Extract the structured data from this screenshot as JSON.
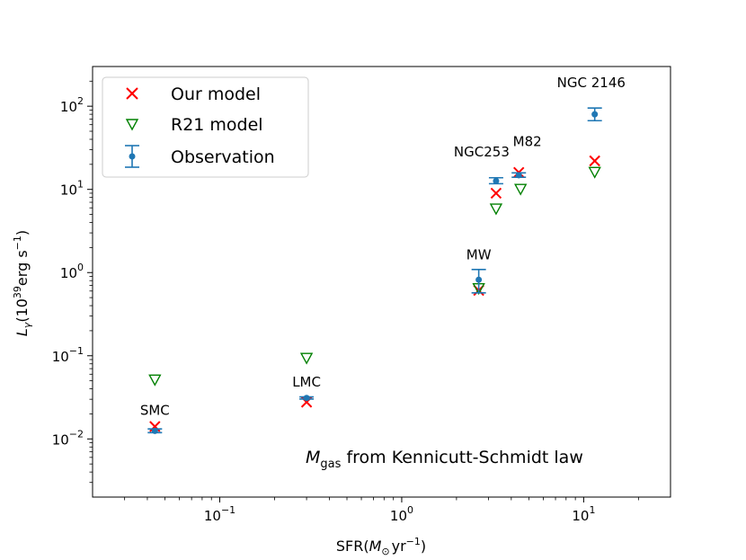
{
  "chart_data": {
    "type": "scatter",
    "xscale": "log",
    "yscale": "log",
    "xlim": [
      0.02,
      30
    ],
    "ylim": [
      0.002,
      300
    ],
    "xlabel_main": "SFR(",
    "xlabel_sym": "M",
    "xlabel_sub": "⊙",
    "xlabel_unit": "yr",
    "xlabel_exp": "−1",
    "xlabel_close": ")",
    "ylabel_sym": "L",
    "ylabel_sub": "γ",
    "ylabel_open": "(10",
    "ylabel_exp1": "39",
    "ylabel_unit": "erg s",
    "ylabel_exp2": "−1",
    "ylabel_close": ")",
    "xticks": [
      {
        "value": 0.1,
        "base": "10",
        "exp": "−1"
      },
      {
        "value": 1,
        "base": "10",
        "exp": "0"
      },
      {
        "value": 10,
        "base": "10",
        "exp": "1"
      }
    ],
    "yticks": [
      {
        "value": 0.01,
        "base": "10",
        "exp": "−2"
      },
      {
        "value": 0.1,
        "base": "10",
        "exp": "−1"
      },
      {
        "value": 1,
        "base": "10",
        "exp": "0"
      },
      {
        "value": 10,
        "base": "10",
        "exp": "1"
      },
      {
        "value": 100,
        "base": "10",
        "exp": "2"
      }
    ],
    "legend": {
      "position": "upper-left",
      "entries": [
        "Our model",
        "R21 model",
        "Observation"
      ]
    },
    "note": {
      "sym": "M",
      "sub": "gas",
      "text": " from Kennicutt-Schmidt law"
    },
    "series": [
      {
        "name": "Our model",
        "marker": "x",
        "color": "#ff0000",
        "points": [
          {
            "x": 0.044,
            "y": 0.0141
          },
          {
            "x": 0.3,
            "y": 0.0277
          },
          {
            "x": 2.65,
            "y": 0.61
          },
          {
            "x": 3.3,
            "y": 9.0
          },
          {
            "x": 4.4,
            "y": 16.0
          },
          {
            "x": 11.5,
            "y": 22.0
          }
        ]
      },
      {
        "name": "R21 model",
        "marker": "triangle-down",
        "color": "#008000",
        "points": [
          {
            "x": 0.044,
            "y": 0.051
          },
          {
            "x": 0.3,
            "y": 0.093
          },
          {
            "x": 2.65,
            "y": 0.64
          },
          {
            "x": 3.3,
            "y": 5.8
          },
          {
            "x": 4.5,
            "y": 10.0
          },
          {
            "x": 11.5,
            "y": 16.0
          }
        ]
      },
      {
        "name": "Observation",
        "marker": "errorbar",
        "color": "#1f77b4",
        "points": [
          {
            "x": 0.044,
            "y": 0.0125,
            "ylo": 0.0119,
            "yhi": 0.0132
          },
          {
            "x": 0.3,
            "y": 0.0311,
            "ylo": 0.0302,
            "yhi": 0.032
          },
          {
            "x": 2.65,
            "y": 0.82,
            "ylo": 0.57,
            "yhi": 1.09
          },
          {
            "x": 3.3,
            "y": 12.6,
            "ylo": 11.7,
            "yhi": 13.8
          },
          {
            "x": 4.4,
            "y": 14.8,
            "ylo": 14.0,
            "yhi": 15.8
          },
          {
            "x": 11.5,
            "y": 80.0,
            "ylo": 67.0,
            "yhi": 95.0
          }
        ]
      }
    ],
    "annotations": [
      {
        "text": "SMC",
        "x": 0.044,
        "y": 0.0195
      },
      {
        "text": "LMC",
        "x": 0.3,
        "y": 0.0425
      },
      {
        "text": "MW",
        "x": 2.65,
        "y": 1.45
      },
      {
        "text": "NGC253",
        "x": 2.75,
        "y": 25
      },
      {
        "text": "M82",
        "x": 4.9,
        "y": 33
      },
      {
        "text": "NGC 2146",
        "x": 11.0,
        "y": 170
      }
    ]
  }
}
